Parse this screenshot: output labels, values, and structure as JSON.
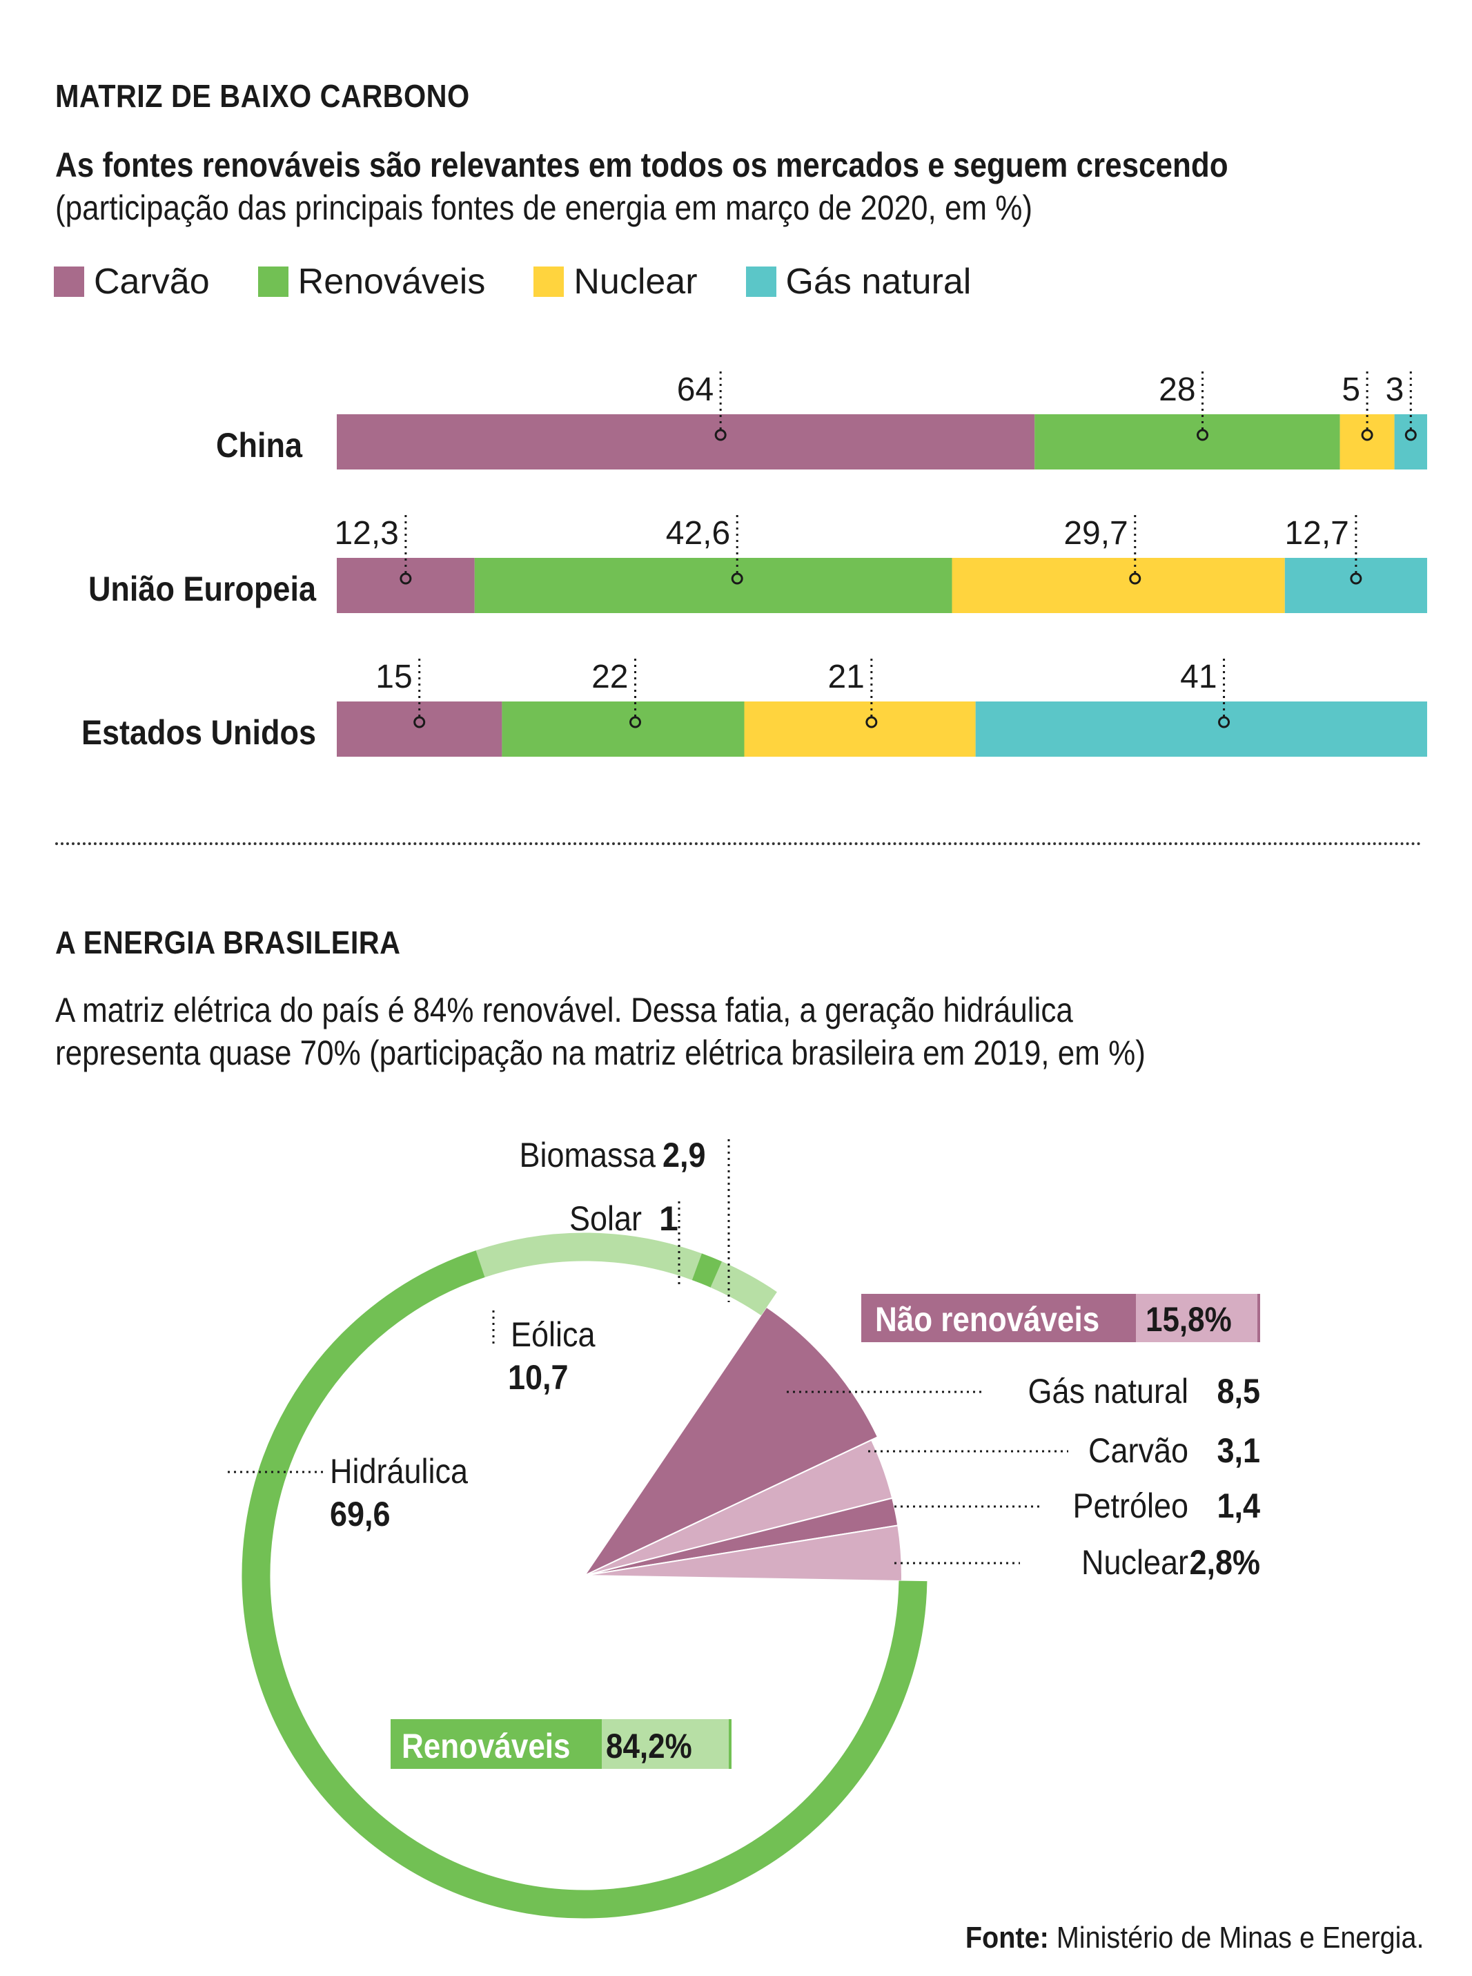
{
  "chart_data": [
    {
      "type": "bar",
      "stacked": true,
      "orientation": "horizontal",
      "title": "MATRIZ DE BAIXO CARBONO",
      "subtitle_line1": "As fontes renováveis são relevantes em todos os mercados e seguem crescendo",
      "subtitle_line2": "(participação das principais fontes de energia em março de 2020, em %)",
      "categories": [
        "China",
        "União Europeia",
        "Estados Unidos"
      ],
      "series": [
        {
          "name": "Carvão",
          "color": "#a86b8b",
          "values": [
            64,
            12.3,
            15
          ],
          "labels": [
            "64",
            "12,3",
            "15"
          ]
        },
        {
          "name": "Renováveis",
          "color": "#72c054",
          "values": [
            28,
            42.6,
            22
          ],
          "labels": [
            "28",
            "42,6",
            "22"
          ]
        },
        {
          "name": "Nuclear",
          "color": "#ffd43e",
          "values": [
            5,
            29.7,
            21
          ],
          "labels": [
            "5",
            "29,7",
            "21"
          ]
        },
        {
          "name": "Gás natural",
          "color": "#5bc6c8",
          "values": [
            3,
            12.7,
            41
          ],
          "labels": [
            "3",
            "12,7",
            "41"
          ]
        }
      ],
      "legend_position": "top-left"
    },
    {
      "type": "pie",
      "title": "A ENERGIA BRASILEIRA",
      "subtitle_line1": "A matriz elétrica do país é 84% renovável. Dessa fatia, a geração hidráulica",
      "subtitle_line2": "representa quase 70% (participação na matriz elétrica brasileira em 2019, em %)",
      "groups": [
        {
          "name": "Renováveis",
          "total": 84.2,
          "total_label": "84,2%",
          "color": "#72c054",
          "light_color": "#b7dfa5"
        },
        {
          "name": "Não renováveis",
          "total": 15.8,
          "total_label": "15,8%",
          "color": "#a86b8b",
          "light_color": "#d6adc2"
        }
      ],
      "slices": [
        {
          "name": "Hidráulica",
          "value": 69.6,
          "label": "69,6",
          "group": "Renováveis",
          "color": "#72c054"
        },
        {
          "name": "Eólica",
          "value": 10.7,
          "label": "10,7",
          "group": "Renováveis",
          "color": "#b7dfa5"
        },
        {
          "name": "Solar",
          "value": 1,
          "label": "1",
          "group": "Renováveis",
          "color": "#72c054"
        },
        {
          "name": "Biomassa",
          "value": 2.9,
          "label": "2,9",
          "group": "Renováveis",
          "color": "#b7dfa5"
        },
        {
          "name": "Gás natural",
          "value": 8.5,
          "label": "8,5",
          "group": "Não renováveis",
          "color": "#a86b8b"
        },
        {
          "name": "Carvão",
          "value": 3.1,
          "label": "3,1",
          "group": "Não renováveis",
          "color": "#d6adc2"
        },
        {
          "name": "Petróleo",
          "value": 1.4,
          "label": "1,4",
          "group": "Não renováveis",
          "color": "#a86b8b"
        },
        {
          "name": "Nuclear",
          "value": 2.8,
          "label": "2,8%",
          "group": "Não renováveis",
          "color": "#d6adc2"
        }
      ]
    }
  ],
  "source": {
    "label": "Fonte:",
    "text": "Ministério de Minas e Energia."
  }
}
